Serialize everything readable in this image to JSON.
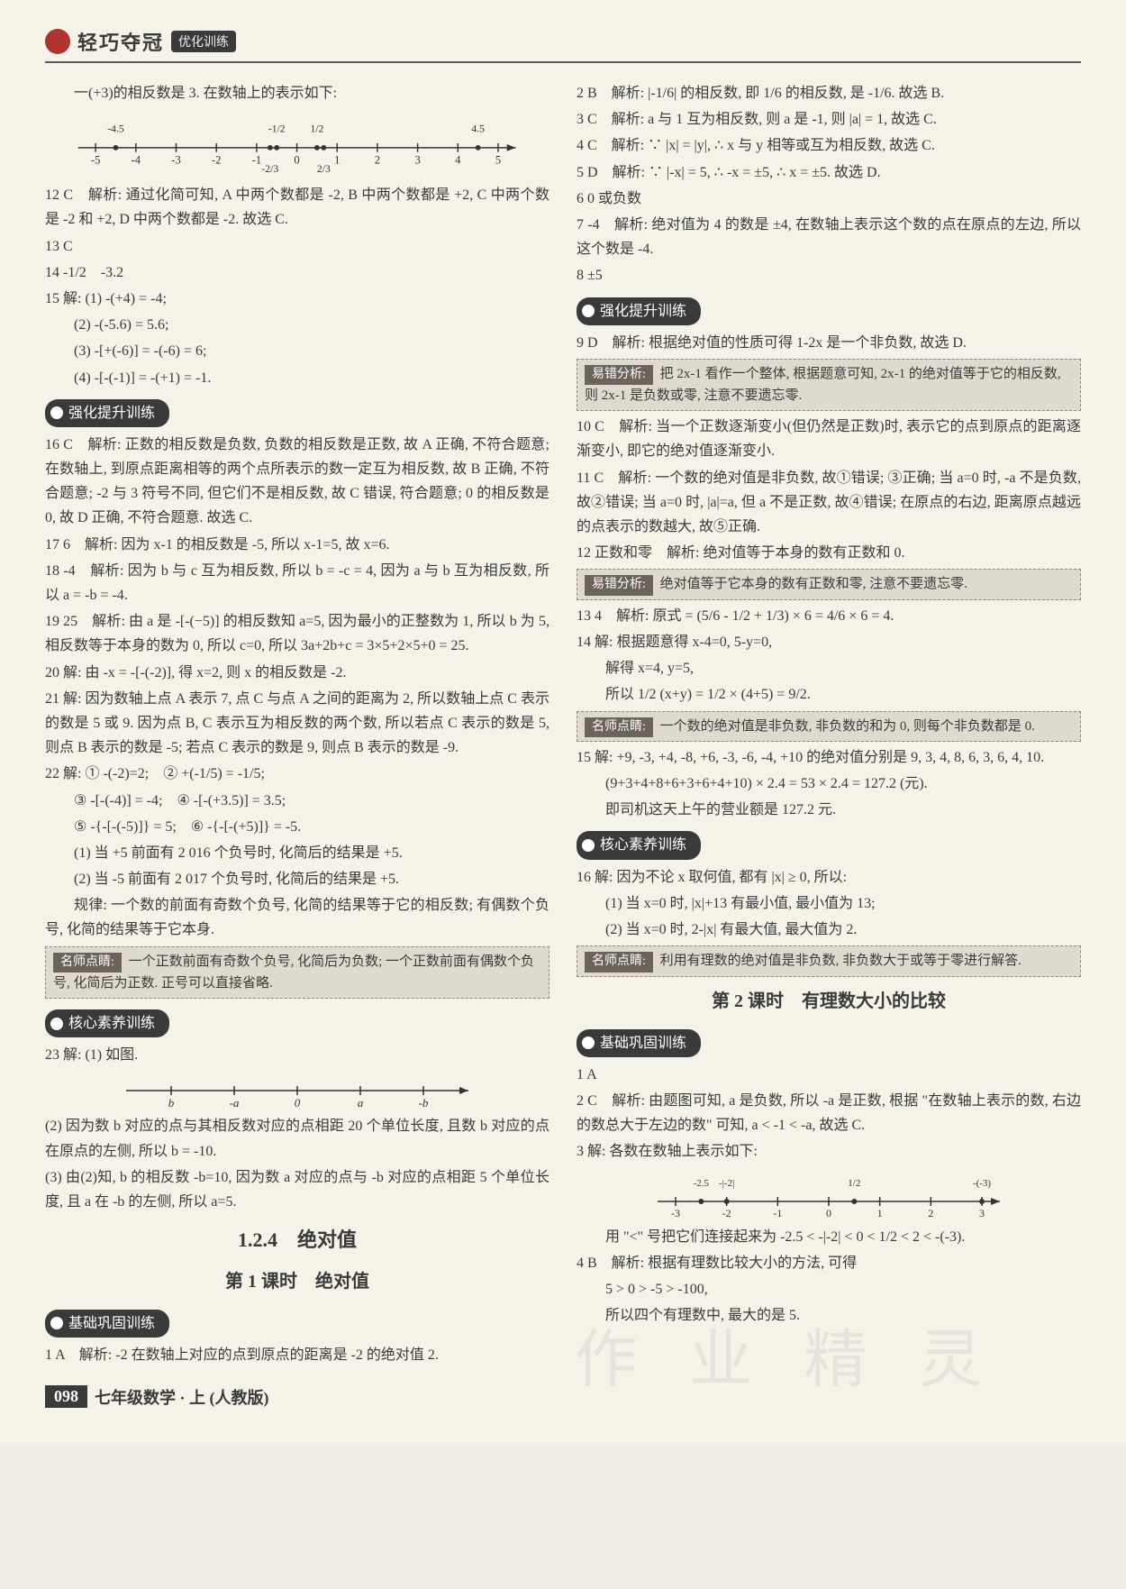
{
  "header": {
    "brand": "轻巧夺冠",
    "tag": "优化训练"
  },
  "left": {
    "intro": "一(+3)的相反数是 3. 在数轴上的表示如下:",
    "numline1": {
      "ticks": [
        -5,
        -4,
        -3,
        -2,
        -1,
        0,
        1,
        2,
        3,
        4,
        5
      ],
      "top_labels": [
        {
          "x": -4.5,
          "t": "-4.5"
        },
        {
          "x": -0.5,
          "t": "-1/2"
        },
        {
          "x": 0.5,
          "t": "1/2"
        },
        {
          "x": 4.5,
          "t": "4.5"
        }
      ],
      "bottom_labels": [
        {
          "x": -0.666,
          "t": "-2/3"
        },
        {
          "x": 0.666,
          "t": "2/3"
        }
      ]
    },
    "q12": "12 C　解析: 通过化简可知, A 中两个数都是 -2, B 中两个数都是 +2, C 中两个数是 -2 和 +2, D 中两个数都是 -2. 故选 C.",
    "q13": "13 C",
    "q14": "14 -1/2　-3.2",
    "q15_head": "15 解: (1) -(+4) = -4;",
    "q15_2": "(2) -(-5.6) = 5.6;",
    "q15_3": "(3) -[+(-6)] = -(-6) = 6;",
    "q15_4": "(4) -[-(-1)] = -(+1) = -1.",
    "badge_up": "强化提升训练",
    "q16": "16 C　解析: 正数的相反数是负数, 负数的相反数是正数, 故 A 正确, 不符合题意; 在数轴上, 到原点距离相等的两个点所表示的数一定互为相反数, 故 B 正确, 不符合题意; -2 与 3 符号不同, 但它们不是相反数, 故 C 错误, 符合题意; 0 的相反数是 0, 故 D 正确, 不符合题意. 故选 C.",
    "q17": "17 6　解析: 因为 x-1 的相反数是 -5, 所以 x-1=5, 故 x=6.",
    "q18": "18 -4　解析: 因为 b 与 c 互为相反数, 所以 b = -c = 4, 因为 a 与 b 互为相反数, 所以 a = -b = -4.",
    "q19": "19 25　解析: 由 a 是 -[-(−5)] 的相反数知 a=5, 因为最小的正整数为 1, 所以 b 为 5, 相反数等于本身的数为 0, 所以 c=0, 所以 3a+2b+c = 3×5+2×5+0 = 25.",
    "q20": "20 解: 由 -x = -[-(-2)], 得 x=2, 则 x 的相反数是 -2.",
    "q21": "21 解: 因为数轴上点 A 表示 7, 点 C 与点 A 之间的距离为 2, 所以数轴上点 C 表示的数是 5 或 9. 因为点 B, C 表示互为相反数的两个数, 所以若点 C 表示的数是 5, 则点 B 表示的数是 -5; 若点 C 表示的数是 9, 则点 B 表示的数是 -9.",
    "q22_1": "22 解: ① -(-2)=2;　② +(-1/5) = -1/5;",
    "q22_2": "③ -[-(-4)] = -4;　④ -[-(+3.5)] = 3.5;",
    "q22_3": "⑤ -{-[-(-5)]} = 5;　⑥ -{-[-(+5)]} = -5.",
    "q22_4": "(1) 当 +5 前面有 2 016 个负号时, 化简后的结果是 +5.",
    "q22_5": "(2) 当 -5 前面有 2 017 个负号时, 化简后的结果是 +5.",
    "q22_6": "规律: 一个数的前面有奇数个负号, 化简的结果等于它的相反数; 有偶数个负号, 化简的结果等于它本身.",
    "callout1_title": "名师点睛:",
    "callout1": "一个正数前面有奇数个负号, 化简后为负数; 一个正数前面有偶数个负号, 化简后为正数. 正号可以直接省略.",
    "badge_core": "核心素养训练",
    "q23_head": "23 解: (1) 如图.",
    "numline2": {
      "labels": [
        "b",
        "-a",
        "0",
        "a",
        "-b"
      ]
    },
    "q23_2": "(2) 因为数 b 对应的点与其相反数对应的点相距 20 个单位长度, 且数 b 对应的点在原点的左侧, 所以 b = -10.",
    "q23_3": "(3) 由(2)知, b 的相反数 -b=10, 因为数 a 对应的点与 -b 对应的点相距 5 个单位长度, 且 a 在 -b 的左侧, 所以 a=5.",
    "h_124": "1.2.4　绝对值",
    "h_lesson1": "第 1 课时　绝对值",
    "badge_base": "基础巩固训练",
    "q1": "1 A　解析: -2 在数轴上对应的点到原点的距离是 -2 的绝对值 2."
  },
  "right": {
    "q2": "2 B　解析: |-1/6| 的相反数, 即 1/6 的相反数, 是 -1/6. 故选 B.",
    "q3": "3 C　解析: a 与 1 互为相反数, 则 a 是 -1, 则 |a| = 1, 故选 C.",
    "q4": "4 C　解析: ∵ |x| = |y|, ∴ x 与 y 相等或互为相反数, 故选 C.",
    "q5": "5 D　解析: ∵ |-x| = 5, ∴ -x = ±5, ∴ x = ±5. 故选 D.",
    "q6": "6 0 或负数",
    "q7": "7 -4　解析: 绝对值为 4 的数是 ±4, 在数轴上表示这个数的点在原点的左边, 所以这个数是 -4.",
    "q8": "8 ±5",
    "badge_up": "强化提升训练",
    "q9": "9 D　解析: 根据绝对值的性质可得 1-2x 是一个非负数, 故选 D.",
    "callout_err1_title": "易错分析:",
    "callout_err1": "把 2x-1 看作一个整体, 根据题意可知, 2x-1 的绝对值等于它的相反数, 则 2x-1 是负数或零, 注意不要遗忘零.",
    "q10": "10 C　解析: 当一个正数逐渐变小(但仍然是正数)时, 表示它的点到原点的距离逐渐变小, 即它的绝对值逐渐变小.",
    "q11": "11 C　解析: 一个数的绝对值是非负数, 故①错误; ③正确; 当 a=0 时, -a 不是负数, 故②错误; 当 a=0 时, |a|=a, 但 a 不是正数, 故④错误; 在原点的右边, 距离原点越远的点表示的数越大, 故⑤正确.",
    "q12": "12 正数和零　解析: 绝对值等于本身的数有正数和 0.",
    "callout_err2_title": "易错分析:",
    "callout_err2": "绝对值等于它本身的数有正数和零, 注意不要遗忘零.",
    "q13": "13 4　解析: 原式 = (5/6 - 1/2 + 1/3) × 6 = 4/6 × 6 = 4.",
    "q14_1": "14 解: 根据题意得 x-4=0, 5-y=0,",
    "q14_2": "解得 x=4, y=5,",
    "q14_3": "所以 1/2 (x+y) = 1/2 × (4+5) = 9/2.",
    "callout2_title": "名师点睛:",
    "callout2": "一个数的绝对值是非负数, 非负数的和为 0, 则每个非负数都是 0.",
    "q15_1": "15 解: +9, -3, +4, -8, +6, -3, -6, -4, +10 的绝对值分别是 9, 3, 4, 8, 6, 3, 6, 4, 10.",
    "q15_2": "(9+3+4+8+6+3+6+4+10) × 2.4 = 53 × 2.4 = 127.2 (元).",
    "q15_3": "即司机这天上午的营业额是 127.2 元.",
    "badge_core": "核心素养训练",
    "q16_1": "16 解: 因为不论 x 取何值, 都有 |x| ≥ 0, 所以:",
    "q16_2": "(1) 当 x=0 时, |x|+13 有最小值, 最小值为 13;",
    "q16_3": "(2) 当 x=0 时, 2-|x| 有最大值, 最大值为 2.",
    "callout3_title": "名师点睛:",
    "callout3": "利用有理数的绝对值是非负数, 非负数大于或等于零进行解答.",
    "h_lesson2": "第 2 课时　有理数大小的比较",
    "badge_base": "基础巩固训练",
    "rq1": "1 A",
    "rq2": "2 C　解析: 由题图可知, a 是负数, 所以 -a 是正数, 根据 \"在数轴上表示的数, 右边的数总大于左边的数\" 可知, a < -1 < -a, 故选 C.",
    "rq3_head": "3 解: 各数在数轴上表示如下:",
    "numline3": {
      "ticks": [
        -3,
        -2,
        -1,
        0,
        1,
        2,
        3
      ],
      "labels": [
        {
          "x": -2.5,
          "t": "-2.5"
        },
        {
          "x": -2,
          "t": "-|-2|"
        },
        {
          "x": 0.5,
          "t": "1/2"
        },
        {
          "x": 3,
          "t": "-(-3)"
        }
      ]
    },
    "rq3_tail": "用 \"<\" 号把它们连接起来为 -2.5 < -|-2| < 0 < 1/2 < 2 < -(-3).",
    "rq4_1": "4 B　解析: 根据有理数比较大小的方法, 可得",
    "rq4_2": "5 > 0 > -5 > -100,",
    "rq4_3": "所以四个有理数中, 最大的是 5."
  },
  "footer": {
    "page": "098",
    "text": "七年级数学 · 上 (人教版)"
  },
  "watermark": "作 业 精 灵"
}
